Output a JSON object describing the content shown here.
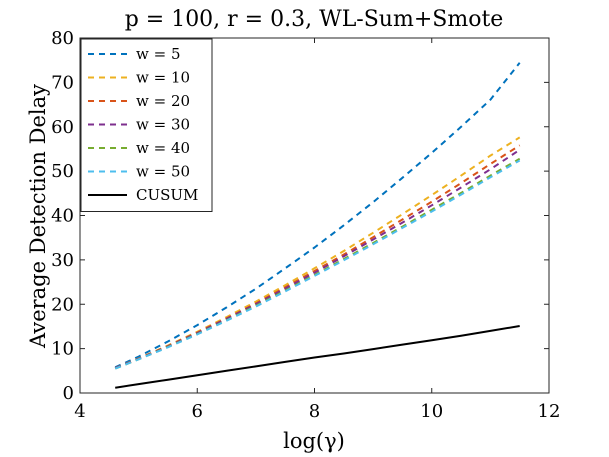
{
  "chart_data": {
    "type": "line",
    "title": "p = 100, r = 0.3, WL-Sum+Smote",
    "xlabel": "log(γ)",
    "ylabel": "Average Detection Delay",
    "xlim": [
      4,
      12
    ],
    "ylim": [
      0,
      80
    ],
    "xticks": [
      4,
      6,
      8,
      10,
      12
    ],
    "yticks": [
      0,
      10,
      20,
      30,
      40,
      50,
      60,
      70,
      80
    ],
    "grid": false,
    "legend_position": "top-left",
    "x": [
      4.6,
      5.0,
      5.5,
      6.0,
      6.5,
      7.0,
      7.5,
      8.0,
      8.5,
      9.0,
      9.5,
      10.0,
      10.5,
      11.0,
      11.5
    ],
    "series": [
      {
        "name": "w = 5",
        "color": "#0072BD",
        "style": "dashed",
        "values": [
          5.8,
          8.2,
          11.6,
          15.3,
          19.3,
          23.5,
          28.1,
          32.8,
          37.8,
          43.0,
          48.5,
          54.1,
          60.0,
          66.1,
          74.4
        ]
      },
      {
        "name": "w = 10",
        "color": "#EDB120",
        "style": "dashed",
        "values": [
          5.6,
          7.8,
          10.7,
          13.8,
          17.1,
          20.6,
          24.3,
          28.1,
          32.0,
          36.1,
          40.3,
          44.6,
          49.0,
          53.5,
          57.6
        ]
      },
      {
        "name": "w = 20",
        "color": "#D95319",
        "style": "dashed",
        "values": [
          5.6,
          7.7,
          10.6,
          13.6,
          16.8,
          20.2,
          23.8,
          27.5,
          31.2,
          35.1,
          39.1,
          43.1,
          47.3,
          51.6,
          55.8
        ]
      },
      {
        "name": "w = 30",
        "color": "#7E2F8E",
        "style": "dashed",
        "values": [
          5.6,
          7.7,
          10.5,
          13.5,
          16.7,
          20.0,
          23.5,
          27.1,
          30.8,
          34.6,
          38.4,
          42.3,
          46.3,
          50.4,
          54.8
        ]
      },
      {
        "name": "w = 40",
        "color": "#77AC30",
        "style": "dashed",
        "values": [
          5.5,
          7.6,
          10.4,
          13.3,
          16.4,
          19.7,
          23.1,
          26.6,
          30.2,
          33.8,
          37.5,
          41.3,
          45.1,
          49.0,
          52.8
        ]
      },
      {
        "name": "w = 50",
        "color": "#4DBEEE",
        "style": "dashed",
        "values": [
          5.5,
          7.6,
          10.3,
          13.2,
          16.3,
          19.5,
          22.9,
          26.4,
          29.9,
          33.5,
          37.2,
          40.9,
          44.7,
          48.6,
          52.4
        ]
      },
      {
        "name": "CUSUM",
        "color": "#000000",
        "style": "solid",
        "values": [
          1.2,
          2.0,
          3.0,
          4.0,
          5.0,
          6.0,
          7.0,
          8.0,
          8.9,
          9.9,
          10.9,
          11.9,
          12.9,
          14.0,
          15.1
        ]
      }
    ]
  }
}
